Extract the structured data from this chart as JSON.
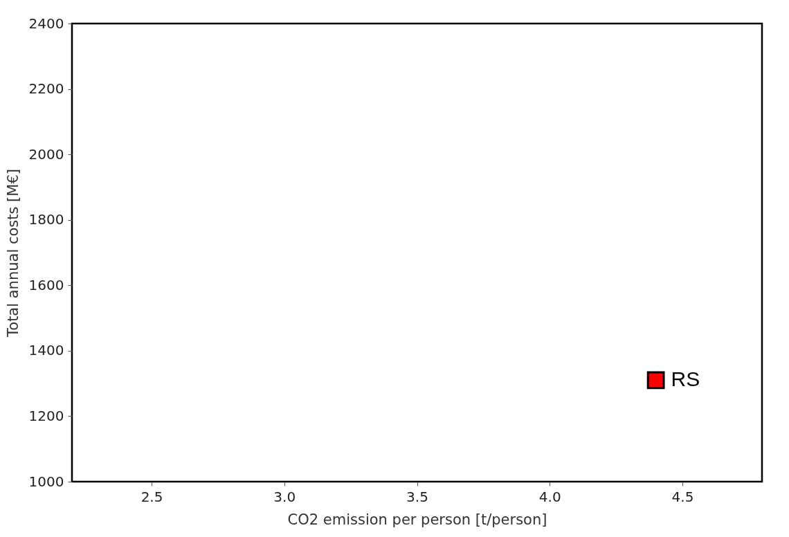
{
  "chart_data": {
    "type": "scatter",
    "xlabel": "CO2 emission per person [t/person]",
    "ylabel": "Total annual costs [M€]",
    "x": [
      4.4
    ],
    "series": [
      {
        "color": "#ff0000",
        "values": [
          1310
        ]
      }
    ],
    "marker": "square",
    "annotations": [
      {
        "text": "RS",
        "x": 4.4,
        "y": 1310
      }
    ],
    "xlim": [
      2.2,
      4.8
    ],
    "ylim": [
      1000,
      2400
    ],
    "xticks": [
      2.5,
      {
        "value": 3,
        "label": "3.0"
      },
      3.5,
      {
        "value": 4,
        "label": "4.0"
      },
      4.5
    ],
    "yticks": [
      1000,
      1200,
      1400,
      1600,
      1800,
      2000,
      2200,
      2400
    ],
    "grid": false
  }
}
